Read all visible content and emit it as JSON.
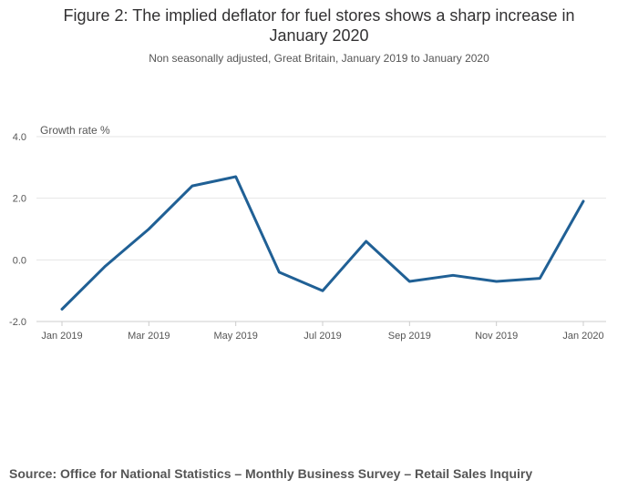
{
  "header": {
    "title": "Figure 2: The implied deflator for fuel stores shows a sharp increase in January 2020",
    "subtitle": "Non seasonally adjusted, Great Britain, January 2019 to January 2020"
  },
  "footer": {
    "source": "Source: Office for National Statistics – Monthly Business Survey – Retail Sales Inquiry"
  },
  "colors": {
    "line": "#206095",
    "grid": "#e6e6e6",
    "axis": "#cccccc",
    "text": "#555555"
  },
  "chart_data": {
    "type": "line",
    "title": "Figure 2: The implied deflator for fuel stores shows a sharp increase in January 2020",
    "subtitle": "Non seasonally adjusted, Great Britain, January 2019 to January 2020",
    "ylabel": "Growth rate %",
    "xlabel": "",
    "ylim": [
      -2,
      4
    ],
    "yticks": [
      "4.0",
      "2.0",
      "0.0",
      "-2.0"
    ],
    "ytick_values": [
      4,
      2,
      0,
      -2
    ],
    "grid": true,
    "x": [
      "Jan 2019",
      "Feb 2019",
      "Mar 2019",
      "Apr 2019",
      "May 2019",
      "Jun 2019",
      "Jul 2019",
      "Aug 2019",
      "Sep 2019",
      "Oct 2019",
      "Nov 2019",
      "Dec 2019",
      "Jan 2020"
    ],
    "xtick_labels": [
      "Jan 2019",
      "Mar 2019",
      "May 2019",
      "Jul 2019",
      "Sep 2019",
      "Nov 2019",
      "Jan 2020"
    ],
    "series": [
      {
        "values": [
          -1.6,
          -0.2,
          1.0,
          2.4,
          2.7,
          -0.4,
          -1.0,
          0.6,
          -0.7,
          -0.5,
          -0.7,
          -0.6,
          1.9
        ]
      }
    ]
  }
}
